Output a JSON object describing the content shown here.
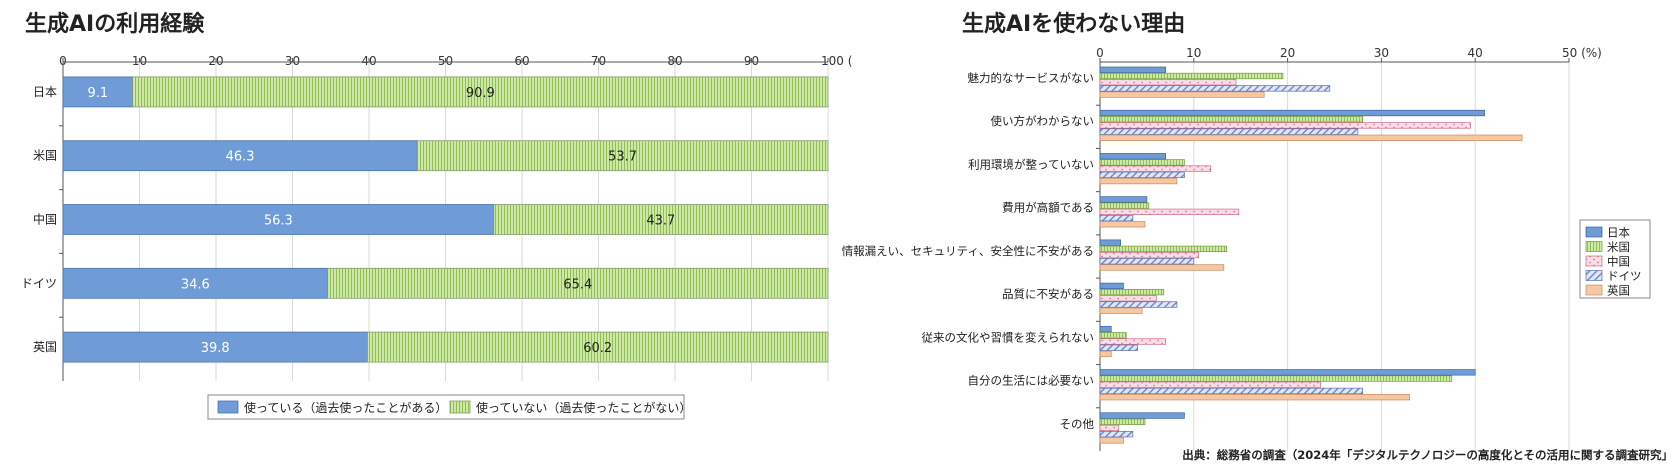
{
  "colors": {
    "japan": "#6f9bd6",
    "usa_fill": "#cfe8a8",
    "usa_stripe": "#8cc152",
    "china_fill": "#fbdde6",
    "china_mark": "#e07b9a",
    "germany_fill": "#dfe6f6",
    "germany_stripe": "#6f86c8",
    "uk": "#f6c7a3",
    "axis": "#555555"
  },
  "source": "出典：総務省の調査（2024年「デジタルテクノロジーの高度化とその活用に関する調査研究」",
  "chart_data": [
    {
      "type": "bar",
      "orientation": "horizontal",
      "stacked": true,
      "title": "生成AIの利用経験",
      "categories": [
        "日本",
        "米国",
        "中国",
        "ドイツ",
        "英国"
      ],
      "series": [
        {
          "name": "使っている（過去使ったことがある）",
          "values": [
            9.1,
            46.3,
            56.3,
            34.6,
            39.8
          ]
        },
        {
          "name": "使っていない（過去使ったことがない）",
          "values": [
            90.9,
            53.7,
            43.7,
            65.4,
            60.2
          ]
        }
      ],
      "xlim": [
        0,
        100
      ],
      "ticks": [
        "0",
        "10",
        "20",
        "30",
        "40",
        "50",
        "60",
        "70",
        "80",
        "90",
        "100 ("
      ],
      "legend_position": "bottom-center"
    },
    {
      "type": "bar",
      "orientation": "horizontal",
      "stacked": false,
      "title": "生成AIを使わない理由",
      "categories": [
        "魅力的なサービスがない",
        "使い方がわからない",
        "利用環境が整っていない",
        "費用が高額である",
        "情報漏えい、セキュリティ、安全性に不安がある",
        "品質に不安がある",
        "従来の文化や習慣を変えられない",
        "自分の生活には必要ない",
        "その他"
      ],
      "series": [
        {
          "name": "日本",
          "values": [
            7.0,
            41.0,
            7.0,
            5.0,
            2.2,
            2.5,
            1.2,
            40.0,
            9.0
          ]
        },
        {
          "name": "米国",
          "values": [
            19.5,
            28.0,
            9.0,
            5.2,
            13.5,
            6.8,
            2.8,
            37.5,
            4.8
          ]
        },
        {
          "name": "中国",
          "values": [
            14.5,
            39.5,
            11.8,
            14.8,
            10.5,
            6.0,
            7.0,
            23.5,
            2.0
          ]
        },
        {
          "name": "ドイツ",
          "values": [
            24.5,
            27.5,
            9.0,
            3.5,
            10.0,
            8.2,
            4.0,
            28.0,
            3.5
          ]
        },
        {
          "name": "英国",
          "values": [
            17.5,
            45.0,
            8.2,
            4.8,
            13.2,
            4.5,
            1.2,
            33.0,
            2.5
          ]
        }
      ],
      "xlim": [
        0,
        50
      ],
      "ticks": [
        "0",
        "10",
        "20",
        "30",
        "40",
        "50 (%)"
      ],
      "legend_position": "right"
    }
  ]
}
